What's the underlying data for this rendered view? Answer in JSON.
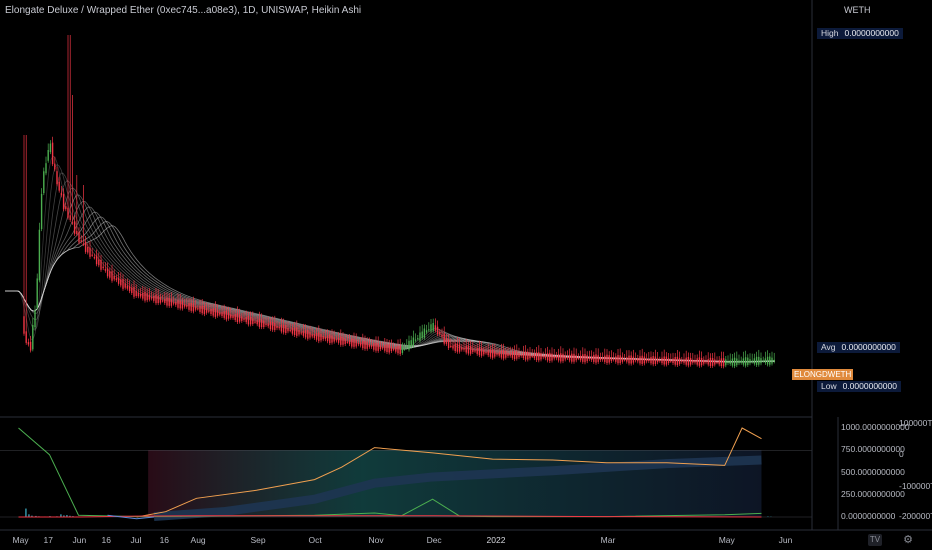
{
  "header": {
    "title": "Elongate Deluxe / Wrapped Ether (0xec745...a08e3), 1D, UNISWAP, Heikin Ashi",
    "currency": "WETH"
  },
  "price_scale": {
    "high": {
      "label": "High",
      "value": "0.0000000000"
    },
    "avg": {
      "label": "Avg",
      "value": "0.0000000000"
    },
    "low": {
      "label": "Low",
      "value": "0.0000000000"
    },
    "symbol_tag": "ELONGDWETH",
    "symbol_color": "#e08a3c"
  },
  "indicator_scale_left": [
    "1000.0000000000",
    "750.0000000000",
    "500.0000000000",
    "250.0000000000",
    "0.0000000000"
  ],
  "indicator_scale_right": [
    "100000T",
    "0",
    "-100000T",
    "-200000T"
  ],
  "x_axis": [
    "May",
    "17",
    "Jun",
    "16",
    "Jul",
    "16",
    "Aug",
    "Sep",
    "Oct",
    "Nov",
    "Dec",
    "2022",
    "Mar",
    "May",
    "Jun"
  ],
  "x_axis_bold": [
    "2022"
  ],
  "chart_data": [
    {
      "type": "candlestick-heikin-ashi",
      "title": "Elongate Deluxe / Wrapped Ether (0xec745...a08e3), 1D, UNISWAP, Heikin Ashi",
      "x": [
        "2021-05-01",
        "2021-05-04",
        "2021-05-07",
        "2021-05-10",
        "2021-05-13",
        "2021-05-17",
        "2021-05-20",
        "2021-05-24",
        "2021-05-28",
        "2021-06-01",
        "2021-06-05",
        "2021-06-16",
        "2021-07-01",
        "2021-07-16",
        "2021-08-01",
        "2021-09-01",
        "2021-10-01",
        "2021-11-01",
        "2021-11-15",
        "2021-12-01",
        "2021-12-10",
        "2022-01-01",
        "2022-02-01",
        "2022-03-01",
        "2022-04-01",
        "2022-05-01",
        "2022-05-20"
      ],
      "close_relative": [
        0.25,
        0.12,
        0.08,
        0.22,
        0.55,
        0.68,
        0.58,
        0.5,
        0.45,
        0.4,
        0.37,
        0.3,
        0.24,
        0.22,
        0.2,
        0.16,
        0.12,
        0.09,
        0.08,
        0.15,
        0.09,
        0.07,
        0.06,
        0.055,
        0.05,
        0.045,
        0.05
      ],
      "colors": {
        "up": "#4caf50",
        "down": "#f23645",
        "ma_ribbon": "#d0d0d0"
      },
      "y_labels": {
        "High": "0.0000000000",
        "Avg": "0.0000000000",
        "Low": "0.0000000000"
      },
      "currency": "WETH"
    },
    {
      "type": "line",
      "panel": "indicator",
      "ylim_left": [
        0,
        1000
      ],
      "series": [
        {
          "color": "#f0a050",
          "x": [
            "2021-07-01",
            "2021-07-16",
            "2021-08-01",
            "2021-09-01",
            "2021-10-01",
            "2021-10-15",
            "2021-11-01",
            "2021-12-01",
            "2022-01-01",
            "2022-02-01",
            "2022-03-01",
            "2022-04-01",
            "2022-05-01",
            "2022-05-10",
            "2022-05-20"
          ],
          "y": [
            0,
            60,
            210,
            300,
            420,
            560,
            780,
            720,
            650,
            640,
            610,
            610,
            580,
            1000,
            880
          ]
        },
        {
          "color": "#4caf50",
          "x": [
            "2021-05-01",
            "2021-05-17",
            "2021-06-01",
            "2021-07-01",
            "2021-08-01",
            "2021-09-01",
            "2021-10-01",
            "2021-11-01",
            "2021-11-15",
            "2021-12-01",
            "2021-12-15",
            "2022-01-01",
            "2022-03-01",
            "2022-05-01",
            "2022-05-20"
          ],
          "y": [
            1000,
            700,
            20,
            5,
            10,
            15,
            20,
            45,
            15,
            200,
            10,
            5,
            5,
            25,
            40
          ]
        },
        {
          "color": "#f23645",
          "x": [
            "2021-05-01",
            "2021-06-01",
            "2021-07-01",
            "2021-08-01",
            "2021-10-01",
            "2021-12-01",
            "2022-03-01",
            "2022-05-20"
          ],
          "y": [
            0,
            0,
            10,
            15,
            15,
            15,
            5,
            0
          ]
        },
        {
          "color": "#5b8bd9",
          "x": [
            "2021-06-16",
            "2021-07-01",
            "2021-07-10"
          ],
          "y": [
            20,
            -20,
            0
          ]
        }
      ],
      "band_color": "#1d6b6b",
      "volume_color": "#2a7a8a"
    }
  ]
}
